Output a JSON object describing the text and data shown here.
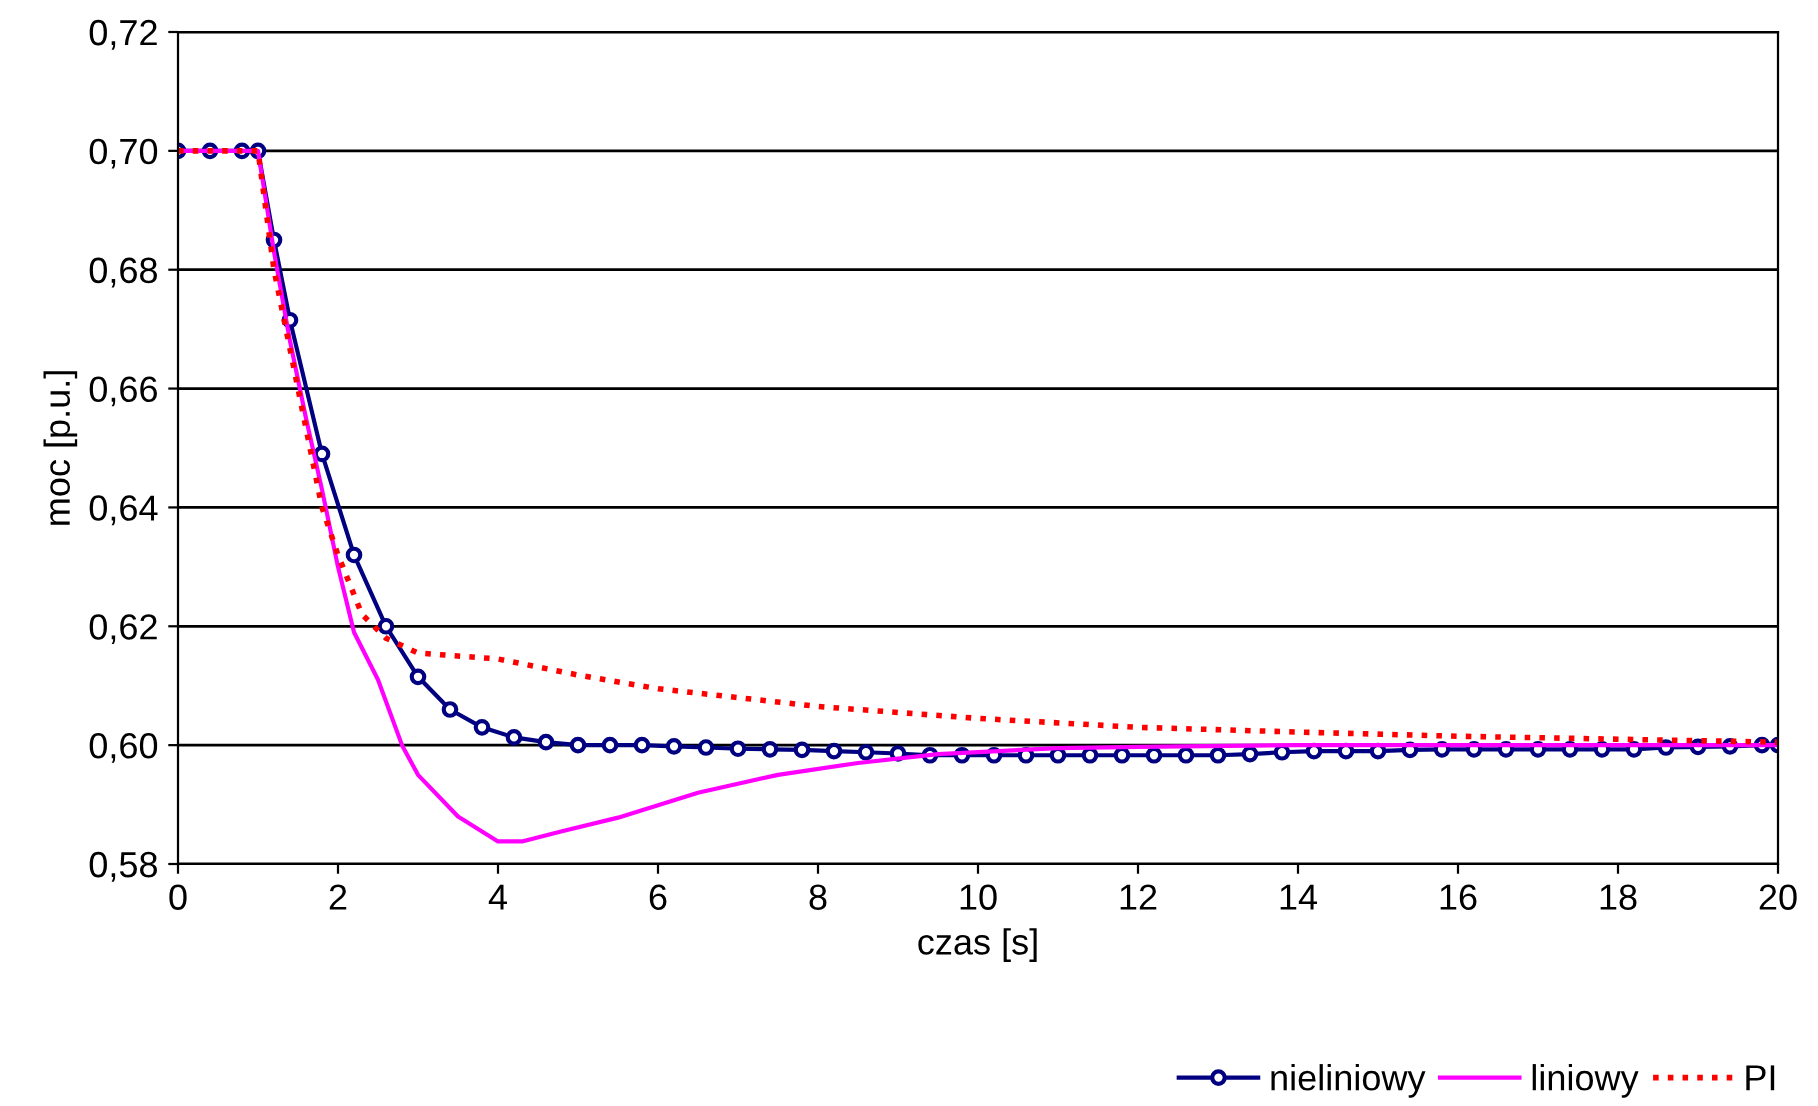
{
  "chart_data": {
    "type": "line",
    "xlabel": "czas [s]",
    "ylabel": "moc [p.u.]",
    "xlim": [
      0,
      20
    ],
    "ylim": [
      0.58,
      0.72
    ],
    "xticks": [
      0,
      2,
      4,
      6,
      8,
      10,
      12,
      14,
      16,
      18,
      20
    ],
    "yticks": [
      {
        "value": 0.58,
        "label": "0,58"
      },
      {
        "value": 0.6,
        "label": "0,60"
      },
      {
        "value": 0.62,
        "label": "0,62"
      },
      {
        "value": 0.64,
        "label": "0,64"
      },
      {
        "value": 0.66,
        "label": "0,66"
      },
      {
        "value": 0.68,
        "label": "0,68"
      },
      {
        "value": 0.7,
        "label": "0,70"
      },
      {
        "value": 0.72,
        "label": "0,72"
      }
    ],
    "grid": "y",
    "legend": "bottom right",
    "series": [
      {
        "name": "nieliniowy",
        "color": "#000080",
        "marker": "circle",
        "line_style": "solid",
        "x": [
          0,
          0.4,
          0.8,
          1.0,
          1.2,
          1.4,
          1.8,
          2.2,
          2.6,
          3.0,
          3.4,
          3.8,
          4.2,
          4.6,
          5.0,
          5.4,
          5.8,
          6.2,
          6.6,
          7.0,
          7.4,
          7.8,
          8.2,
          8.6,
          9.0,
          9.4,
          9.8,
          10.2,
          10.6,
          11.0,
          11.4,
          11.8,
          12.2,
          12.6,
          13.0,
          13.4,
          13.8,
          14.2,
          14.6,
          15.0,
          15.4,
          15.8,
          16.2,
          16.6,
          17.0,
          17.4,
          17.8,
          18.2,
          18.6,
          19.0,
          19.4,
          19.8,
          20.0
        ],
        "values": [
          0.7,
          0.7,
          0.7,
          0.7,
          0.685,
          0.6715,
          0.649,
          0.632,
          0.62,
          0.6115,
          0.606,
          0.603,
          0.6013,
          0.6005,
          0.6,
          0.6,
          0.6,
          0.5998,
          0.5996,
          0.5994,
          0.5993,
          0.5992,
          0.599,
          0.5988,
          0.5986,
          0.5983,
          0.5983,
          0.5983,
          0.5983,
          0.5983,
          0.5983,
          0.5983,
          0.5983,
          0.5983,
          0.5983,
          0.5985,
          0.5988,
          0.599,
          0.599,
          0.599,
          0.5992,
          0.5993,
          0.5993,
          0.5993,
          0.5993,
          0.5993,
          0.5993,
          0.5993,
          0.5996,
          0.5997,
          0.5998,
          0.6,
          0.6
        ]
      },
      {
        "name": "liniowy",
        "color": "#ff00ff",
        "marker": "none",
        "line_style": "solid",
        "x": [
          0,
          1.0,
          1.2,
          1.4,
          1.6,
          1.8,
          2.0,
          2.2,
          2.5,
          2.8,
          3.0,
          3.5,
          4.0,
          4.3,
          4.8,
          5.5,
          6.5,
          7.5,
          8.5,
          9.5,
          11,
          12,
          14,
          20
        ],
        "values": [
          0.7,
          0.7,
          0.683,
          0.668,
          0.655,
          0.643,
          0.63,
          0.619,
          0.611,
          0.6,
          0.595,
          0.588,
          0.5838,
          0.5838,
          0.5855,
          0.5878,
          0.592,
          0.595,
          0.597,
          0.5985,
          0.5995,
          0.5997,
          0.6,
          0.6
        ]
      },
      {
        "name": "PI",
        "color": "#ff0000",
        "marker": "none",
        "line_style": "dotted",
        "x": [
          0,
          1.0,
          1.2,
          1.5,
          1.8,
          2.0,
          2.3,
          2.6,
          3.0,
          3.5,
          4.0,
          5,
          6,
          7,
          8,
          9,
          10,
          12,
          14,
          16,
          18,
          20
        ],
        "values": [
          0.7,
          0.7,
          0.68,
          0.66,
          0.64,
          0.632,
          0.622,
          0.618,
          0.6155,
          0.615,
          0.6145,
          0.6118,
          0.6095,
          0.608,
          0.6065,
          0.6055,
          0.6045,
          0.603,
          0.6022,
          0.6015,
          0.601,
          0.6005
        ]
      }
    ]
  }
}
